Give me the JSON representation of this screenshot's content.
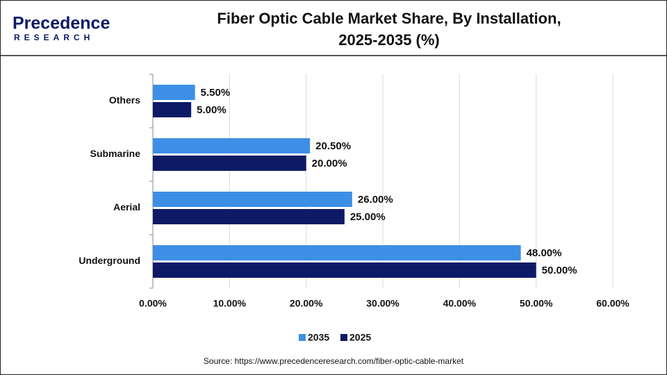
{
  "logo": {
    "name": "Precedence",
    "tagline": "RESEARCH"
  },
  "chart_data": {
    "type": "bar",
    "orientation": "horizontal",
    "title": [
      "Fiber Optic Cable Market Share, By Installation,",
      "2025-2035 (%)"
    ],
    "categories": [
      "Others",
      "Submarine",
      "Aerial",
      "Underground"
    ],
    "series": [
      {
        "name": "2035",
        "color": "#3d8fe6",
        "values": [
          5.5,
          20.5,
          26,
          48
        ],
        "value_labels": [
          "5.50%",
          "20.50%",
          "26.00%",
          "48.00%"
        ]
      },
      {
        "name": "2025",
        "color": "#0d1a66",
        "values": [
          5,
          20,
          25,
          50
        ],
        "value_labels": [
          "5.00%",
          "20.00%",
          "25.00%",
          "50.00%"
        ]
      }
    ],
    "xlim": [
      0,
      60
    ],
    "xticks": [
      {
        "value": 0,
        "label": "0.00%"
      },
      {
        "value": 10,
        "label": "10.00%"
      },
      {
        "value": 20,
        "label": "20.00%"
      },
      {
        "value": 30,
        "label": "30.00%"
      },
      {
        "value": 40,
        "label": "40.00%"
      },
      {
        "value": 50,
        "label": "50.00%"
      },
      {
        "value": 60,
        "label": "60.00%"
      }
    ],
    "grid": true,
    "legend": "bottom",
    "source": "Source: https://www.precedenceresearch.com/fiber-optic-cable-market"
  }
}
